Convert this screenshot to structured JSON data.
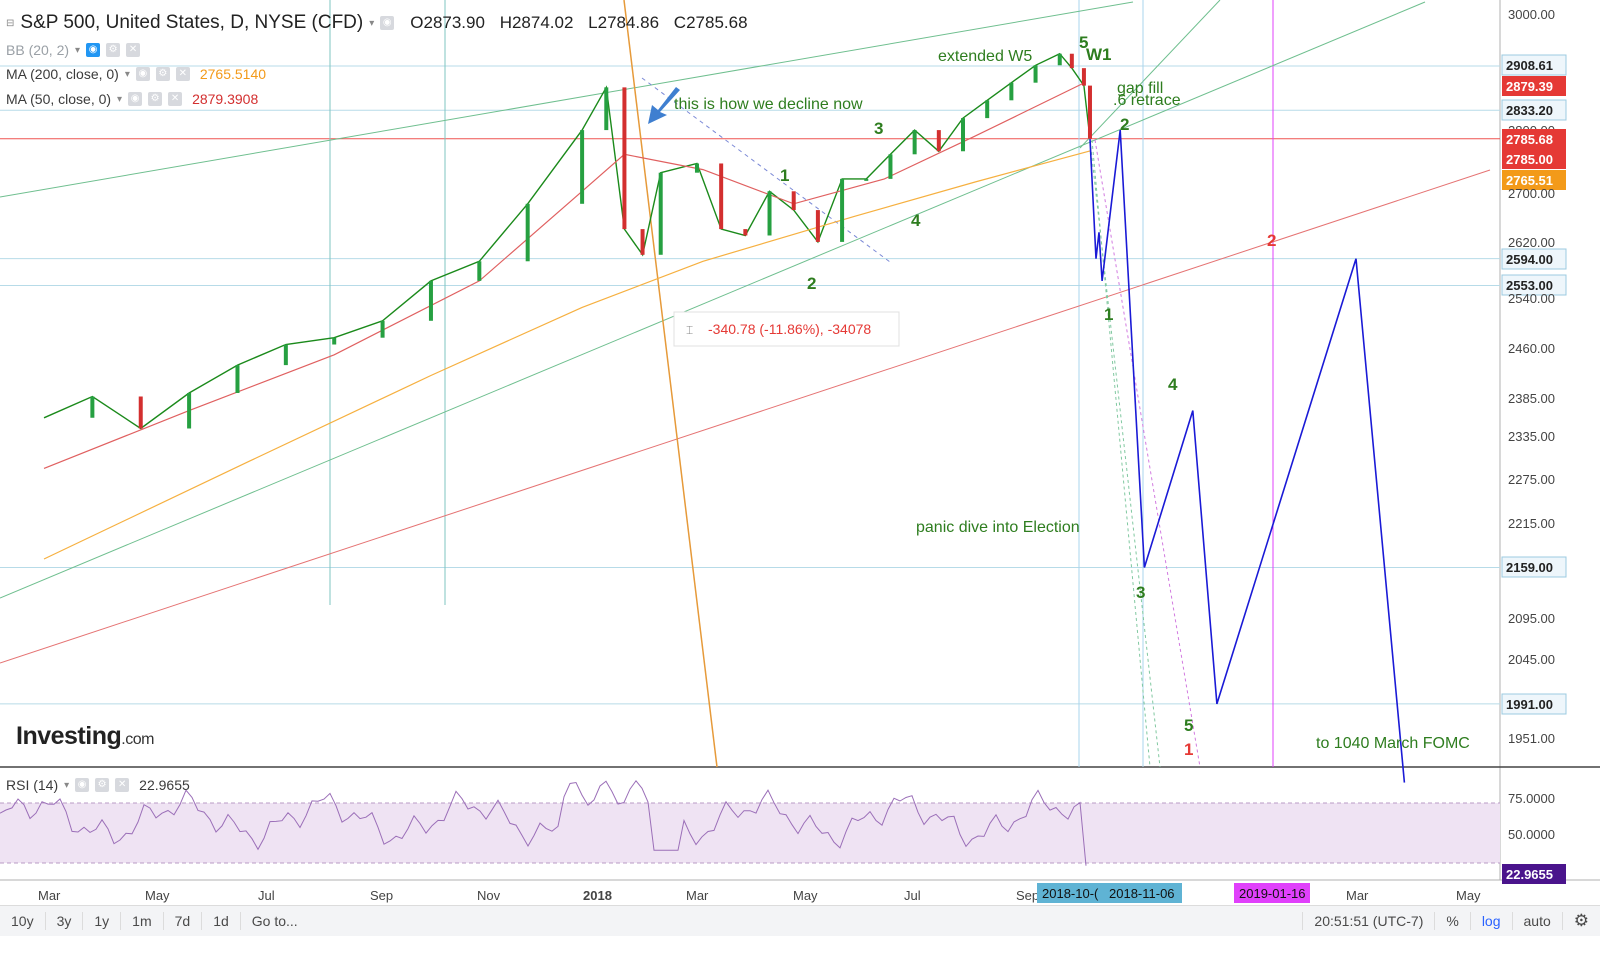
{
  "header": {
    "title": "S&P 500, United States, D, NYSE (CFD)",
    "open": "O2873.90",
    "high": "H2874.02",
    "low": "L2784.86",
    "close": "C2785.68"
  },
  "indicators": {
    "bb": {
      "label": "BB (20, 2)"
    },
    "ma200": {
      "label": "MA (200, close, 0)",
      "value": "2765.5140",
      "color": "#f39a19"
    },
    "ma50": {
      "label": "MA (50, close, 0)",
      "value": "2879.3908",
      "color": "#d32f2f"
    },
    "rsi": {
      "label": "RSI (14)",
      "value": "22.9655"
    }
  },
  "watermark": {
    "brand": "Investing",
    "suffix": ".com"
  },
  "chart_data": {
    "type": "line",
    "title": "S&P 500, United States, D, NYSE (CFD)",
    "y_scale": "log",
    "ylim": [
      1900,
      3050
    ],
    "price_axis_ticks": [
      "3000.00",
      "2908.61",
      "2879.39",
      "2833.20",
      "2800.00",
      "2785.68",
      "2785.00",
      "2765.51",
      "2700.00",
      "2620.00",
      "2594.00",
      "2553.00",
      "2540.00",
      "2460.00",
      "2385.00",
      "2335.00",
      "2275.00",
      "2215.00",
      "2159.00",
      "2095.00",
      "2045.00",
      "1991.00",
      "1951.00"
    ],
    "price_badges": [
      {
        "label": "2908.61",
        "style": "outline"
      },
      {
        "label": "2879.39",
        "style": "red"
      },
      {
        "label": "2833.20",
        "style": "outline"
      },
      {
        "label": "2785.68",
        "style": "red"
      },
      {
        "label": "2785.00",
        "style": "red"
      },
      {
        "label": "2765.51",
        "style": "orange"
      },
      {
        "label": "2594.00",
        "style": "outline"
      },
      {
        "label": "2553.00",
        "style": "outline"
      },
      {
        "label": "2159.00",
        "style": "outline"
      },
      {
        "label": "1991.00",
        "style": "outline"
      }
    ],
    "time_axis_labels": [
      "Mar",
      "May",
      "Jul",
      "Sep",
      "Nov",
      "2018",
      "Mar",
      "May",
      "Jul",
      "Sep",
      "Mar",
      "May"
    ],
    "time_badges": [
      {
        "label": "2018-10-(",
        "color": "#5fb3d4"
      },
      {
        "label": "2018-11-06",
        "color": "#5fb3d4"
      },
      {
        "label": "2019-01-16",
        "color": "#e040fb"
      }
    ],
    "series": [
      {
        "name": "S&P 500",
        "color": "#1b8a1b",
        "points": [
          [
            2017.16,
            2360
          ],
          [
            2017.24,
            2390
          ],
          [
            2017.32,
            2345
          ],
          [
            2017.4,
            2395
          ],
          [
            2017.48,
            2435
          ],
          [
            2017.56,
            2465
          ],
          [
            2017.64,
            2475
          ],
          [
            2017.72,
            2500
          ],
          [
            2017.8,
            2560
          ],
          [
            2017.88,
            2590
          ],
          [
            2017.96,
            2680
          ],
          [
            2018.05,
            2800
          ],
          [
            2018.09,
            2872
          ],
          [
            2018.12,
            2640
          ],
          [
            2018.15,
            2600
          ],
          [
            2018.18,
            2730
          ],
          [
            2018.24,
            2745
          ],
          [
            2018.28,
            2640
          ],
          [
            2018.32,
            2630
          ],
          [
            2018.36,
            2700
          ],
          [
            2018.4,
            2670
          ],
          [
            2018.44,
            2620
          ],
          [
            2018.48,
            2720
          ],
          [
            2018.52,
            2720
          ],
          [
            2018.56,
            2760
          ],
          [
            2018.6,
            2800
          ],
          [
            2018.64,
            2765
          ],
          [
            2018.68,
            2820
          ],
          [
            2018.72,
            2850
          ],
          [
            2018.76,
            2880
          ],
          [
            2018.8,
            2910
          ],
          [
            2018.84,
            2930
          ],
          [
            2018.86,
            2905
          ],
          [
            2018.88,
            2875
          ],
          [
            2018.89,
            2785.68
          ]
        ]
      },
      {
        "name": "MA (50, close, 0)",
        "color": "#e06060",
        "points": [
          [
            2017.16,
            2290
          ],
          [
            2017.4,
            2370
          ],
          [
            2017.64,
            2450
          ],
          [
            2017.88,
            2560
          ],
          [
            2018.05,
            2700
          ],
          [
            2018.12,
            2760
          ],
          [
            2018.25,
            2735
          ],
          [
            2018.4,
            2680
          ],
          [
            2018.55,
            2720
          ],
          [
            2018.7,
            2790
          ],
          [
            2018.88,
            2879.39
          ]
        ]
      },
      {
        "name": "MA (200, close, 0)",
        "color": "#f6b040",
        "points": [
          [
            2017.16,
            2170
          ],
          [
            2017.5,
            2300
          ],
          [
            2017.8,
            2420
          ],
          [
            2018.05,
            2520
          ],
          [
            2018.25,
            2590
          ],
          [
            2018.5,
            2660
          ],
          [
            2018.7,
            2715
          ],
          [
            2018.89,
            2765.51
          ]
        ]
      },
      {
        "name": "projection",
        "color": "#1a1ad6",
        "points": [
          [
            2018.89,
            2785
          ],
          [
            2018.9,
            2594
          ],
          [
            2018.905,
            2635
          ],
          [
            2018.91,
            2560
          ],
          [
            2018.94,
            2800
          ],
          [
            2018.98,
            2159
          ],
          [
            2019.06,
            2370
          ],
          [
            2019.1,
            1991
          ],
          [
            2019.33,
            2594
          ],
          [
            2019.41,
            1900
          ]
        ]
      }
    ],
    "rsi": {
      "ylim": [
        20,
        90
      ],
      "ticks": [
        "75.0000",
        "50.0000",
        "22.9655"
      ],
      "last": 22.9655
    },
    "wave_labels": [
      {
        "text": "5",
        "color": "#2e7d1f"
      },
      {
        "text": "W1",
        "color": "#2e7d1f"
      },
      {
        "text": "3",
        "color": "#2e7d1f"
      },
      {
        "text": "1",
        "color": "#2e7d1f"
      },
      {
        "text": "4",
        "color": "#2e7d1f"
      },
      {
        "text": "2",
        "color": "#2e7d1f"
      },
      {
        "text": "2",
        "color": "#2e7d1f"
      },
      {
        "text": "1",
        "color": "#2e7d1f"
      },
      {
        "text": "4",
        "color": "#2e7d1f"
      },
      {
        "text": "3",
        "color": "#2e7d1f"
      },
      {
        "text": "5",
        "color": "#2e7d1f"
      },
      {
        "text": "1",
        "color": "#e53935"
      },
      {
        "text": "2",
        "color": "#e53935"
      }
    ],
    "annotations": [
      {
        "text": "extended W5",
        "color": "#2e7d1f"
      },
      {
        "text": "this is how we decline now",
        "color": "#2e7d1f"
      },
      {
        "text": "gap fill",
        "color": "#2e7d1f"
      },
      {
        "text": ".6 retrace",
        "color": "#2e7d1f"
      },
      {
        "text": "panic dive into Election",
        "color": "#2e7d1f"
      },
      {
        "text": "to 1040 March FOMC",
        "color": "#2e7d1f"
      },
      {
        "text": "-340.78 (-11.86%), -34078",
        "color": "#e53935"
      }
    ]
  },
  "bottom_bar": {
    "ranges": [
      "10y",
      "3y",
      "1y",
      "1m",
      "7d",
      "1d"
    ],
    "goto": "Go to...",
    "clock": "20:51:51 (UTC-7)",
    "percent": "%",
    "log": "log",
    "auto": "auto"
  }
}
